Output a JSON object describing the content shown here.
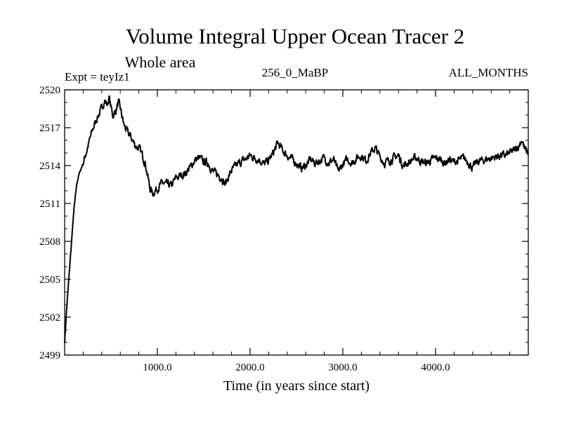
{
  "chart_data": {
    "type": "line",
    "title": "Volume Integral Upper Ocean Tracer 2",
    "subtitle": "Whole area",
    "annotations": {
      "experiment": "Expt = teyIz1",
      "period": "256_0_MaBP",
      "months": "ALL_MONTHS"
    },
    "xlabel": "Time (in years since start)",
    "ylabel": "",
    "xlim": [
      0,
      5000
    ],
    "ylim": [
      2499,
      2520
    ],
    "x_ticks": [
      1000,
      2000,
      3000,
      4000
    ],
    "x_tick_labels": [
      "1000.0",
      "2000.0",
      "3000.0",
      "4000.0"
    ],
    "x_minor_step": 200,
    "y_ticks": [
      2499,
      2502,
      2505,
      2508,
      2511,
      2514,
      2517,
      2520
    ],
    "y_tick_labels": [
      "2499",
      "2502",
      "2505",
      "2508",
      "2511",
      "2514",
      "2517",
      "2520"
    ],
    "y_minor_step": 1,
    "grid": false,
    "series": [
      {
        "name": "Volume Integral Upper Ocean Tracer 2",
        "x": [
          0,
          20,
          50,
          80,
          100,
          130,
          150,
          200,
          250,
          300,
          350,
          400,
          430,
          460,
          480,
          500,
          520,
          550,
          580,
          600,
          640,
          680,
          720,
          760,
          800,
          840,
          870,
          900,
          920,
          950,
          1000,
          1050,
          1100,
          1150,
          1200,
          1250,
          1300,
          1350,
          1400,
          1450,
          1500,
          1550,
          1600,
          1650,
          1700,
          1730,
          1760,
          1800,
          1850,
          1900,
          1950,
          2000,
          2050,
          2100,
          2150,
          2200,
          2250,
          2300,
          2350,
          2400,
          2450,
          2500,
          2550,
          2600,
          2650,
          2700,
          2750,
          2800,
          2850,
          2900,
          2950,
          3000,
          3050,
          3100,
          3150,
          3200,
          3250,
          3300,
          3350,
          3400,
          3450,
          3500,
          3550,
          3600,
          3650,
          3700,
          3750,
          3800,
          3850,
          3900,
          3950,
          4000,
          4050,
          4100,
          4150,
          4200,
          4250,
          4300,
          4350,
          4400,
          4450,
          4500,
          4550,
          4600,
          4650,
          4700,
          4750,
          4800,
          4850,
          4900,
          4930,
          4960,
          5000
        ],
        "values": [
          2500.0,
          2502.5,
          2505.5,
          2508.5,
          2510.5,
          2512.5,
          2513.2,
          2514.2,
          2515.5,
          2516.8,
          2517.8,
          2518.5,
          2519.2,
          2518.8,
          2519.4,
          2518.6,
          2518.0,
          2518.3,
          2519.0,
          2518.5,
          2517.2,
          2516.6,
          2516.2,
          2515.6,
          2515.4,
          2514.8,
          2514.2,
          2513.0,
          2512.2,
          2511.8,
          2512.2,
          2512.6,
          2512.5,
          2512.4,
          2513.0,
          2513.2,
          2513.4,
          2513.8,
          2514.4,
          2514.6,
          2514.3,
          2514.2,
          2513.5,
          2513.3,
          2513.0,
          2512.5,
          2513.0,
          2513.6,
          2514.0,
          2514.3,
          2514.5,
          2514.8,
          2514.6,
          2514.5,
          2514.1,
          2514.4,
          2515.0,
          2515.8,
          2515.2,
          2514.8,
          2514.5,
          2514.2,
          2513.8,
          2514.0,
          2514.5,
          2514.2,
          2514.4,
          2514.6,
          2514.2,
          2514.5,
          2513.5,
          2514.1,
          2514.5,
          2514.2,
          2514.6,
          2514.8,
          2514.4,
          2515.0,
          2515.4,
          2514.7,
          2514.2,
          2514.4,
          2514.6,
          2514.8,
          2514.0,
          2514.2,
          2514.5,
          2514.6,
          2514.3,
          2514.2,
          2514.4,
          2514.6,
          2514.5,
          2514.2,
          2514.5,
          2514.3,
          2514.4,
          2514.6,
          2514.3,
          2513.8,
          2514.3,
          2514.4,
          2514.5,
          2514.6,
          2514.7,
          2514.8,
          2514.8,
          2515.0,
          2515.2,
          2515.6,
          2516.1,
          2515.3,
          2515.0
        ]
      }
    ]
  },
  "colors": {
    "line": "#000000",
    "axes": "#000000",
    "background": "#ffffff"
  }
}
